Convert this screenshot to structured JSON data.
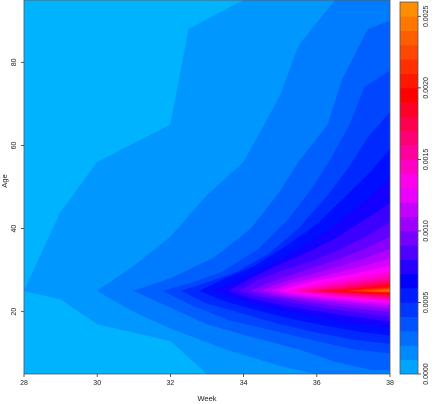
{
  "chart_data": {
    "type": "heatmap",
    "subtype": "filled-contour",
    "title": "",
    "xlabel": "Week",
    "ylabel": "Age",
    "xlim": [
      28,
      38
    ],
    "ylim": [
      5,
      95
    ],
    "x_ticks": [
      28,
      30,
      32,
      34,
      36,
      38
    ],
    "y_ticks": [
      20,
      40,
      60,
      80
    ],
    "colorbar": {
      "range": [
        0,
        0.0026
      ],
      "ticks": [
        "0.0000",
        "0.0005",
        "0.0010",
        "0.0015",
        "0.0020",
        "0.0025"
      ],
      "levels": 26,
      "palette": [
        "#00b3ff",
        "#0000ff",
        "#ff00ff",
        "#ff0000",
        "#ff9900"
      ]
    },
    "peak": {
      "week": 38,
      "age": 25,
      "value": 0.0026
    },
    "contour_levels": [
      {
        "value": 0.0001,
        "points": [
          [
            28,
            25
          ],
          [
            29,
            23
          ],
          [
            30,
            17
          ],
          [
            32,
            13
          ],
          [
            33,
            5
          ],
          [
            38,
            5
          ],
          [
            38,
            95
          ],
          [
            34,
            95
          ],
          [
            32.5,
            88
          ],
          [
            32,
            65
          ],
          [
            30,
            56
          ],
          [
            29,
            44
          ]
        ]
      },
      {
        "value": 0.0002,
        "points": [
          [
            30,
            25
          ],
          [
            31,
            20
          ],
          [
            32,
            16
          ],
          [
            33.5,
            11
          ],
          [
            35,
            7
          ],
          [
            36,
            5
          ],
          [
            38,
            5
          ],
          [
            38,
            95
          ],
          [
            36.5,
            95
          ],
          [
            35.5,
            84
          ],
          [
            35,
            72
          ],
          [
            34,
            56
          ],
          [
            33,
            48
          ],
          [
            32,
            38
          ],
          [
            31,
            31
          ]
        ]
      },
      {
        "value": 0.0003,
        "points": [
          [
            31,
            25
          ],
          [
            32,
            21
          ],
          [
            33,
            17
          ],
          [
            34.2,
            14
          ],
          [
            35.5,
            11
          ],
          [
            36.5,
            8
          ],
          [
            37.5,
            6
          ],
          [
            38,
            6
          ],
          [
            38,
            90
          ],
          [
            37.4,
            88
          ],
          [
            36.7,
            76
          ],
          [
            36.3,
            65
          ],
          [
            35.5,
            56
          ],
          [
            35,
            49
          ],
          [
            34.2,
            40
          ],
          [
            33.2,
            33
          ],
          [
            32,
            28
          ]
        ]
      },
      {
        "value": 0.0004,
        "points": [
          [
            31.8,
            25
          ],
          [
            32.6,
            21.5
          ],
          [
            33.6,
            18
          ],
          [
            34.8,
            15.5
          ],
          [
            36,
            13
          ],
          [
            37,
            11
          ],
          [
            38,
            10
          ],
          [
            38,
            78
          ],
          [
            37.3,
            74
          ],
          [
            36.9,
            65
          ],
          [
            36.4,
            57
          ],
          [
            35.9,
            50
          ],
          [
            35.2,
            42
          ],
          [
            34.4,
            35
          ],
          [
            33.4,
            29.5
          ],
          [
            32.6,
            27
          ]
        ]
      },
      {
        "value": 0.0005,
        "points": [
          [
            32.3,
            25
          ],
          [
            33,
            22
          ],
          [
            34,
            19.5
          ],
          [
            35,
            17
          ],
          [
            36,
            15
          ],
          [
            37,
            13.3
          ],
          [
            38,
            12.3
          ],
          [
            38,
            68
          ],
          [
            37.4,
            62
          ],
          [
            36.9,
            55
          ],
          [
            36.3,
            48
          ],
          [
            35.5,
            40
          ],
          [
            34.7,
            34
          ],
          [
            33.8,
            29.5
          ],
          [
            33,
            27
          ]
        ]
      },
      {
        "value": 0.0006,
        "points": [
          [
            32.8,
            25
          ],
          [
            33.5,
            22.5
          ],
          [
            34.4,
            20.3
          ],
          [
            35.3,
            18.3
          ],
          [
            36.2,
            16.7
          ],
          [
            37.1,
            15.3
          ],
          [
            38,
            14.3
          ],
          [
            38,
            59
          ],
          [
            37.4,
            53
          ],
          [
            36.7,
            47
          ],
          [
            36,
            41
          ],
          [
            35.2,
            36
          ],
          [
            34.3,
            31
          ],
          [
            33.5,
            28
          ]
        ]
      },
      {
        "value": 0.0007,
        "points": [
          [
            33.2,
            25
          ],
          [
            33.9,
            23
          ],
          [
            34.7,
            21.1
          ],
          [
            35.6,
            19.4
          ],
          [
            36.5,
            18
          ],
          [
            37.3,
            16.9
          ],
          [
            38,
            16.2
          ],
          [
            38,
            52
          ],
          [
            37.3,
            46.5
          ],
          [
            36.6,
            41.5
          ],
          [
            35.9,
            37
          ],
          [
            35,
            32.5
          ],
          [
            34.2,
            29
          ],
          [
            33.7,
            27
          ]
        ]
      },
      {
        "value": 0.0008,
        "points": [
          [
            33.6,
            25
          ],
          [
            34.2,
            23.3
          ],
          [
            35,
            21.7
          ],
          [
            35.9,
            20.3
          ],
          [
            36.8,
            19.1
          ],
          [
            37.5,
            18.2
          ],
          [
            38,
            17.6
          ],
          [
            38,
            46
          ],
          [
            37.2,
            41.5
          ],
          [
            36.5,
            37.5
          ],
          [
            35.7,
            34
          ],
          [
            34.9,
            31
          ],
          [
            34.2,
            28
          ]
        ]
      },
      {
        "value": 0.0009,
        "points": [
          [
            33.9,
            25
          ],
          [
            34.5,
            23.6
          ],
          [
            35.3,
            22.3
          ],
          [
            36.1,
            21.1
          ],
          [
            36.9,
            20.1
          ],
          [
            37.6,
            19.3
          ],
          [
            38,
            18.8
          ],
          [
            38,
            41.5
          ],
          [
            37.3,
            37.8
          ],
          [
            36.6,
            34.8
          ],
          [
            35.9,
            32.2
          ],
          [
            35.1,
            30
          ],
          [
            34.4,
            27.6
          ]
        ]
      },
      {
        "value": 0.001,
        "points": [
          [
            34.2,
            25
          ],
          [
            34.8,
            23.8
          ],
          [
            35.5,
            22.7
          ],
          [
            36.3,
            21.7
          ],
          [
            37.1,
            20.8
          ],
          [
            37.7,
            20.2
          ],
          [
            38,
            19.9
          ],
          [
            38,
            38
          ],
          [
            37.3,
            35
          ],
          [
            36.6,
            32.6
          ],
          [
            35.9,
            30.5
          ],
          [
            35.2,
            28.5
          ],
          [
            34.6,
            26.6
          ]
        ]
      },
      {
        "value": 0.0011,
        "points": [
          [
            34.5,
            25
          ],
          [
            35,
            24
          ],
          [
            35.7,
            23.1
          ],
          [
            36.5,
            22.2
          ],
          [
            37.2,
            21.5
          ],
          [
            38,
            20.8
          ],
          [
            38,
            35
          ],
          [
            37.3,
            32.8
          ],
          [
            36.6,
            30.8
          ],
          [
            35.9,
            29.1
          ],
          [
            35.2,
            27.4
          ],
          [
            34.8,
            26.2
          ]
        ]
      },
      {
        "value": 0.0012,
        "points": [
          [
            34.75,
            25
          ],
          [
            35.3,
            24.1
          ],
          [
            35.9,
            23.4
          ],
          [
            36.6,
            22.7
          ],
          [
            37.3,
            22
          ],
          [
            38,
            21.5
          ],
          [
            38,
            32.8
          ],
          [
            37.3,
            31
          ],
          [
            36.6,
            29.5
          ],
          [
            35.9,
            28
          ],
          [
            35.3,
            26.8
          ]
        ]
      },
      {
        "value": 0.0013,
        "points": [
          [
            35,
            25
          ],
          [
            35.5,
            24.3
          ],
          [
            36.1,
            23.7
          ],
          [
            36.8,
            23.1
          ],
          [
            37.4,
            22.5
          ],
          [
            38,
            22.1
          ],
          [
            38,
            31
          ],
          [
            37.3,
            29.6
          ],
          [
            36.6,
            28.4
          ],
          [
            35.9,
            27.3
          ],
          [
            35.4,
            26.1
          ]
        ]
      },
      {
        "value": 0.0014,
        "points": [
          [
            35.2,
            25
          ],
          [
            35.7,
            24.4
          ],
          [
            36.3,
            23.9
          ],
          [
            36.9,
            23.4
          ],
          [
            37.5,
            22.9
          ],
          [
            38,
            22.6
          ],
          [
            38,
            29.7
          ],
          [
            37.3,
            28.6
          ],
          [
            36.6,
            27.6
          ],
          [
            36,
            26.6
          ],
          [
            35.6,
            25.8
          ]
        ]
      },
      {
        "value": 0.0015,
        "points": [
          [
            35.45,
            25
          ],
          [
            35.9,
            24.6
          ],
          [
            36.4,
            24.1
          ],
          [
            37,
            23.7
          ],
          [
            37.5,
            23.3
          ],
          [
            38,
            23
          ],
          [
            38,
            28.7
          ],
          [
            37.4,
            27.8
          ],
          [
            36.8,
            27
          ],
          [
            36.2,
            26.2
          ],
          [
            35.8,
            25.6
          ]
        ]
      },
      {
        "value": 0.0016,
        "points": [
          [
            35.65,
            25
          ],
          [
            36.1,
            24.65
          ],
          [
            36.6,
            24.3
          ],
          [
            37.1,
            23.9
          ],
          [
            37.6,
            23.6
          ],
          [
            38,
            23.4
          ],
          [
            38,
            28
          ],
          [
            37.4,
            27.2
          ],
          [
            36.8,
            26.5
          ],
          [
            36.3,
            25.9
          ],
          [
            35.95,
            25.4
          ]
        ]
      },
      {
        "value": 0.0017,
        "points": [
          [
            35.9,
            25
          ],
          [
            36.3,
            24.7
          ],
          [
            36.8,
            24.4
          ],
          [
            37.3,
            24.1
          ],
          [
            37.7,
            23.85
          ],
          [
            38,
            23.7
          ],
          [
            38,
            27.4
          ],
          [
            37.5,
            26.8
          ],
          [
            37,
            26.2
          ],
          [
            36.5,
            25.6
          ],
          [
            36.15,
            25.25
          ]
        ]
      },
      {
        "value": 0.0018,
        "points": [
          [
            36.1,
            25
          ],
          [
            36.5,
            24.8
          ],
          [
            36.9,
            24.55
          ],
          [
            37.4,
            24.3
          ],
          [
            37.8,
            24.1
          ],
          [
            38,
            24
          ],
          [
            38,
            26.9
          ],
          [
            37.6,
            26.4
          ],
          [
            37.1,
            25.9
          ],
          [
            36.6,
            25.4
          ],
          [
            36.3,
            25.15
          ]
        ]
      },
      {
        "value": 0.0019,
        "points": [
          [
            36.35,
            25
          ],
          [
            36.7,
            24.85
          ],
          [
            37.1,
            24.65
          ],
          [
            37.5,
            24.45
          ],
          [
            37.85,
            24.3
          ],
          [
            38,
            24.25
          ],
          [
            38,
            26.5
          ],
          [
            37.6,
            26.1
          ],
          [
            37.2,
            25.7
          ],
          [
            36.8,
            25.3
          ]
        ]
      },
      {
        "value": 0.002,
        "points": [
          [
            36.6,
            25
          ],
          [
            36.9,
            24.9
          ],
          [
            37.2,
            24.75
          ],
          [
            37.6,
            24.6
          ],
          [
            38,
            24.45
          ],
          [
            38,
            26.15
          ],
          [
            37.6,
            25.85
          ],
          [
            37.2,
            25.5
          ],
          [
            36.85,
            25.2
          ]
        ]
      },
      {
        "value": 0.0021,
        "points": [
          [
            36.85,
            25
          ],
          [
            37.15,
            24.9
          ],
          [
            37.5,
            24.75
          ],
          [
            38,
            24.6
          ],
          [
            38,
            25.85
          ],
          [
            37.6,
            25.6
          ],
          [
            37.2,
            25.3
          ]
        ]
      },
      {
        "value": 0.0022,
        "points": [
          [
            37.1,
            25
          ],
          [
            37.4,
            24.92
          ],
          [
            37.7,
            24.82
          ],
          [
            38,
            24.72
          ],
          [
            38,
            25.6
          ],
          [
            37.7,
            25.4
          ],
          [
            37.35,
            25.15
          ]
        ]
      },
      {
        "value": 0.0023,
        "points": [
          [
            37.35,
            25
          ],
          [
            37.65,
            24.93
          ],
          [
            38,
            24.82
          ],
          [
            38,
            25.4
          ],
          [
            37.7,
            25.22
          ]
        ]
      },
      {
        "value": 0.0024,
        "points": [
          [
            37.6,
            25
          ],
          [
            37.8,
            24.95
          ],
          [
            38,
            24.9
          ],
          [
            38,
            25.25
          ],
          [
            37.8,
            25.12
          ]
        ]
      },
      {
        "value": 0.0025,
        "points": [
          [
            37.8,
            25
          ],
          [
            38,
            24.95
          ],
          [
            38,
            25.12
          ]
        ]
      }
    ]
  }
}
